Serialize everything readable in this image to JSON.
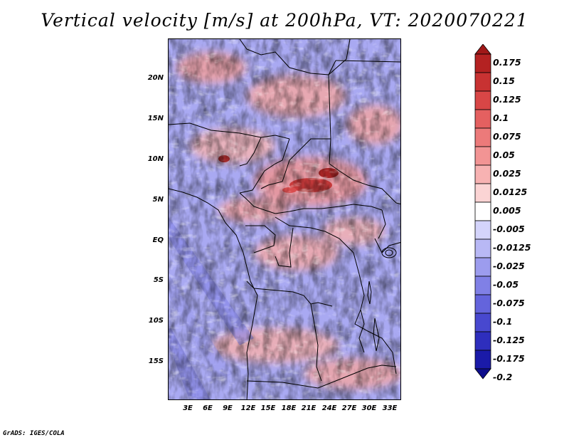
{
  "title": "Vertical velocity [m/s] at 200hPa, VT: 2020070221",
  "credit": "GrADS: IGES/COLA",
  "lat_ticks": [
    "20N",
    "15N",
    "10N",
    "5N",
    "EQ",
    "5S",
    "10S",
    "15S"
  ],
  "lon_ticks": [
    "3E",
    "6E",
    "9E",
    "12E",
    "15E",
    "18E",
    "21E",
    "24E",
    "27E",
    "30E",
    "33E"
  ],
  "colorbar": {
    "labels": [
      "0.175",
      "0.15",
      "0.125",
      "0.1",
      "0.075",
      "0.05",
      "0.025",
      "0.0125",
      "0.005",
      "-0.005",
      "-0.0125",
      "-0.025",
      "-0.05",
      "-0.075",
      "-0.1",
      "-0.125",
      "-0.175",
      "-0.2"
    ],
    "colors": [
      "#a01818",
      "#b42222",
      "#c83232",
      "#d84646",
      "#e46060",
      "#ec7a7a",
      "#f29494",
      "#f7b2b2",
      "#fbd4d4",
      "#ffffff",
      "#d4d4fb",
      "#b8b8f5",
      "#9c9cee",
      "#8080e6",
      "#6464dc",
      "#4848cf",
      "#2e2ebd",
      "#1a1aa8",
      "#0e0e8c"
    ]
  }
}
